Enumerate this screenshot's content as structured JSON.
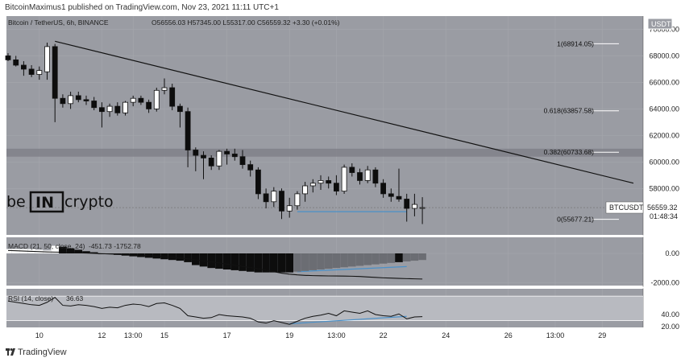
{
  "header": {
    "publish_text": "BitcoinMaximus1 published on TradingView.com, Nov 23, 2021 11:11 UTC+1"
  },
  "footer": {
    "brand_text": "TradingView"
  },
  "watermark": {
    "text_left": "be",
    "text_mid": "IN",
    "text_right": "crypto"
  },
  "colors": {
    "pane_bg": "#9a9ca3",
    "grid": "#a5a7ad",
    "band": "#7c7e86",
    "up": "#ffffff",
    "down": "#0d0d0d",
    "support": "#4a90c8",
    "rsi_band": "#b8bac0"
  },
  "chart_data": [
    {
      "type": "candlestick",
      "legend": {
        "symbol": "Bitcoin / TetherUS, 6h, BINANCE",
        "ohlc": "O56556.03 H57345.00 L55317.00 C56559.32 +3.30 (+0.01%)",
        "currency": "USDT"
      },
      "ylim": [
        54500,
        71000
      ],
      "y_ticks": [
        {
          "value": 70000,
          "label": "70000.00"
        },
        {
          "value": 68000,
          "label": "68000.00"
        },
        {
          "value": 66000,
          "label": "66000.00"
        },
        {
          "value": 64000,
          "label": "64000.00"
        },
        {
          "value": 62000,
          "label": "62000.00"
        },
        {
          "value": 60000,
          "label": "60000.00"
        },
        {
          "value": 58000,
          "label": "58000.00"
        }
      ],
      "x_ticks": [
        {
          "index": 4,
          "label": "10"
        },
        {
          "index": 12,
          "label": "12"
        },
        {
          "index": 16,
          "label": "13:00"
        },
        {
          "index": 20,
          "label": "15"
        },
        {
          "index": 28,
          "label": "17"
        },
        {
          "index": 36,
          "label": "19"
        },
        {
          "index": 42,
          "label": "13:00"
        },
        {
          "index": 48,
          "label": "22"
        },
        {
          "index": 56,
          "label": "24"
        },
        {
          "index": 64,
          "label": "26"
        },
        {
          "index": 70,
          "label": "13:00"
        },
        {
          "index": 76,
          "label": "29"
        }
      ],
      "candles": [
        {
          "o": 68000,
          "h": 68200,
          "l": 67600,
          "c": 67700
        },
        {
          "o": 67700,
          "h": 68000,
          "l": 67200,
          "c": 67300
        },
        {
          "o": 67300,
          "h": 67600,
          "l": 66500,
          "c": 67000
        },
        {
          "o": 67000,
          "h": 67300,
          "l": 66400,
          "c": 66600
        },
        {
          "o": 66600,
          "h": 67200,
          "l": 66200,
          "c": 66900
        },
        {
          "o": 66800,
          "h": 69000,
          "l": 66200,
          "c": 68700
        },
        {
          "o": 68700,
          "h": 68900,
          "l": 63000,
          "c": 64800
        },
        {
          "o": 64800,
          "h": 65100,
          "l": 64100,
          "c": 64400
        },
        {
          "o": 64400,
          "h": 65300,
          "l": 64000,
          "c": 65000
        },
        {
          "o": 65000,
          "h": 65300,
          "l": 64500,
          "c": 64700
        },
        {
          "o": 64700,
          "h": 65000,
          "l": 64300,
          "c": 64600
        },
        {
          "o": 64600,
          "h": 64900,
          "l": 63900,
          "c": 64100
        },
        {
          "o": 64100,
          "h": 64500,
          "l": 62600,
          "c": 63800
        },
        {
          "o": 63800,
          "h": 64400,
          "l": 63400,
          "c": 64200
        },
        {
          "o": 64200,
          "h": 64500,
          "l": 63500,
          "c": 63700
        },
        {
          "o": 63700,
          "h": 64600,
          "l": 63500,
          "c": 64500
        },
        {
          "o": 64500,
          "h": 65000,
          "l": 64200,
          "c": 64800
        },
        {
          "o": 64800,
          "h": 65000,
          "l": 64300,
          "c": 64500
        },
        {
          "o": 64500,
          "h": 64700,
          "l": 63700,
          "c": 64000
        },
        {
          "o": 64000,
          "h": 65600,
          "l": 63800,
          "c": 65400
        },
        {
          "o": 65400,
          "h": 66300,
          "l": 65100,
          "c": 65600
        },
        {
          "o": 65600,
          "h": 65900,
          "l": 63900,
          "c": 64200
        },
        {
          "o": 64200,
          "h": 64400,
          "l": 62600,
          "c": 63800
        },
        {
          "o": 63800,
          "h": 64100,
          "l": 59600,
          "c": 60900
        },
        {
          "o": 60900,
          "h": 61100,
          "l": 59300,
          "c": 60500
        },
        {
          "o": 60500,
          "h": 60800,
          "l": 58700,
          "c": 60300
        },
        {
          "o": 60300,
          "h": 60500,
          "l": 59400,
          "c": 59700
        },
        {
          "o": 59700,
          "h": 60900,
          "l": 59400,
          "c": 60800
        },
        {
          "o": 60800,
          "h": 61000,
          "l": 59800,
          "c": 60600
        },
        {
          "o": 60600,
          "h": 61000,
          "l": 60100,
          "c": 60400
        },
        {
          "o": 60400,
          "h": 60900,
          "l": 59500,
          "c": 59800
        },
        {
          "o": 59800,
          "h": 60100,
          "l": 58900,
          "c": 59400
        },
        {
          "o": 59400,
          "h": 59600,
          "l": 57200,
          "c": 57600
        },
        {
          "o": 57600,
          "h": 58000,
          "l": 56500,
          "c": 57000
        },
        {
          "o": 57000,
          "h": 58100,
          "l": 56600,
          "c": 57800
        },
        {
          "o": 57800,
          "h": 58000,
          "l": 55700,
          "c": 56300
        },
        {
          "o": 56300,
          "h": 57300,
          "l": 55800,
          "c": 56700
        },
        {
          "o": 56700,
          "h": 57800,
          "l": 56400,
          "c": 57600
        },
        {
          "o": 57600,
          "h": 58500,
          "l": 57000,
          "c": 58200
        },
        {
          "o": 58200,
          "h": 58700,
          "l": 57700,
          "c": 58400
        },
        {
          "o": 58400,
          "h": 59000,
          "l": 57900,
          "c": 58600
        },
        {
          "o": 58600,
          "h": 58900,
          "l": 58000,
          "c": 58400
        },
        {
          "o": 58400,
          "h": 59000,
          "l": 57500,
          "c": 57800
        },
        {
          "o": 57800,
          "h": 59800,
          "l": 57600,
          "c": 59600
        },
        {
          "o": 59600,
          "h": 59900,
          "l": 58900,
          "c": 59200
        },
        {
          "o": 59200,
          "h": 59500,
          "l": 58300,
          "c": 58600
        },
        {
          "o": 58600,
          "h": 59700,
          "l": 58400,
          "c": 59400
        },
        {
          "o": 59400,
          "h": 59600,
          "l": 58100,
          "c": 58400
        },
        {
          "o": 58400,
          "h": 58700,
          "l": 57300,
          "c": 57600
        },
        {
          "o": 57600,
          "h": 58000,
          "l": 57000,
          "c": 57400
        },
        {
          "o": 57400,
          "h": 59500,
          "l": 57000,
          "c": 57200
        },
        {
          "o": 57200,
          "h": 57600,
          "l": 55500,
          "c": 56500
        },
        {
          "o": 56500,
          "h": 57600,
          "l": 55900,
          "c": 56800
        },
        {
          "o": 56556.03,
          "h": 57345,
          "l": 55317,
          "c": 56559.32
        }
      ],
      "fib_levels": [
        {
          "value": 68914.05,
          "label": "1(68914.05)"
        },
        {
          "value": 63857.58,
          "label": "0.618(63857.58)"
        },
        {
          "value": 60733.68,
          "label": "0.382(60733.68)"
        },
        {
          "value": 55677.21,
          "label": "0(55677.21)"
        }
      ],
      "resistance_band": [
        60400,
        61000
      ],
      "trendline": {
        "from": {
          "index": 6,
          "value": 69100
        },
        "to": {
          "index": 80,
          "value": 58400
        }
      },
      "support_line": {
        "from": {
          "index": 37,
          "value": 56250
        },
        "to": {
          "index": 51,
          "value": 56250
        }
      },
      "price_tag": {
        "symbol": "BTCUSDT",
        "price": "56559.32",
        "countdown": "01:48:34"
      }
    },
    {
      "type": "histogram",
      "legend": {
        "name": "MACD (21, 50, close, 24)",
        "values": "-451.73  -1752.78"
      },
      "ylim": [
        -2200,
        1100
      ],
      "y_ticks": [
        {
          "value": 0,
          "label": "0.00"
        },
        {
          "value": -2000,
          "label": "-2000.00"
        }
      ],
      "histogram": [
        300,
        300,
        300,
        300,
        250,
        200,
        520,
        450,
        350,
        250,
        150,
        80,
        0,
        -50,
        -100,
        -150,
        -200,
        -250,
        -300,
        -350,
        -400,
        -450,
        -500,
        -600,
        -800,
        -900,
        -1000,
        -1050,
        -1100,
        -1150,
        -1200,
        -1250,
        -1300,
        -1300,
        -1300,
        -1300,
        -1300,
        -1250,
        -1200,
        -1150,
        -1100,
        -1050,
        -1000,
        -950,
        -900,
        -850,
        -800,
        -750,
        -700,
        -650,
        -600,
        -550,
        -500,
        -451.73
      ],
      "histogram_colors": [
        "white",
        "white",
        "white",
        "white",
        "white",
        "white",
        "white",
        "black",
        "black",
        "black",
        "black",
        "black",
        "black",
        "black",
        "black",
        "black",
        "black",
        "black",
        "black",
        "black",
        "black",
        "black",
        "black",
        "black",
        "black",
        "black",
        "black",
        "black",
        "black",
        "black",
        "black",
        "black",
        "black",
        "black",
        "black",
        "black",
        "black",
        "gray",
        "gray",
        "gray",
        "gray",
        "gray",
        "gray",
        "gray",
        "gray",
        "gray",
        "gray",
        "gray",
        "gray",
        "gray",
        "black",
        "gray",
        "gray",
        "gray"
      ],
      "signal": [
        200,
        180,
        160,
        140,
        120,
        100,
        90,
        80,
        60,
        40,
        20,
        0,
        -20,
        -40,
        -60,
        -80,
        -100,
        -130,
        -160,
        -190,
        -230,
        -270,
        -320,
        -370,
        -440,
        -510,
        -580,
        -650,
        -730,
        -810,
        -890,
        -970,
        -1050,
        -1150,
        -1250,
        -1350,
        -1420,
        -1470,
        -1500,
        -1520,
        -1530,
        -1540,
        -1545,
        -1550,
        -1560,
        -1580,
        -1610,
        -1640,
        -1670,
        -1690,
        -1710,
        -1725,
        -1740,
        -1752.78
      ],
      "support_line": {
        "from": {
          "index": 37,
          "value": -1250
        },
        "to": {
          "index": 51,
          "value": -900
        }
      }
    },
    {
      "type": "line",
      "legend": {
        "name": "RSI (14, close)",
        "value": "36.63"
      },
      "ylim": [
        19,
        82
      ],
      "y_ticks": [
        {
          "value": 40,
          "label": "40.00"
        },
        {
          "value": 20,
          "label": "20.00"
        }
      ],
      "band": [
        30,
        70
      ],
      "values": [
        62,
        60,
        58,
        56,
        55,
        60,
        68,
        55,
        54,
        56,
        55,
        53,
        50,
        52,
        51,
        55,
        57,
        56,
        53,
        58,
        59,
        55,
        50,
        38,
        36,
        34,
        35,
        40,
        38,
        37,
        36,
        34,
        28,
        26,
        30,
        27,
        24,
        29,
        34,
        37,
        39,
        42,
        38,
        46,
        44,
        42,
        46,
        40,
        38,
        37,
        41,
        33,
        36,
        36.63
      ],
      "support_line": {
        "from": {
          "index": 36,
          "value": 25
        },
        "to": {
          "index": 51,
          "value": 37
        }
      }
    }
  ]
}
